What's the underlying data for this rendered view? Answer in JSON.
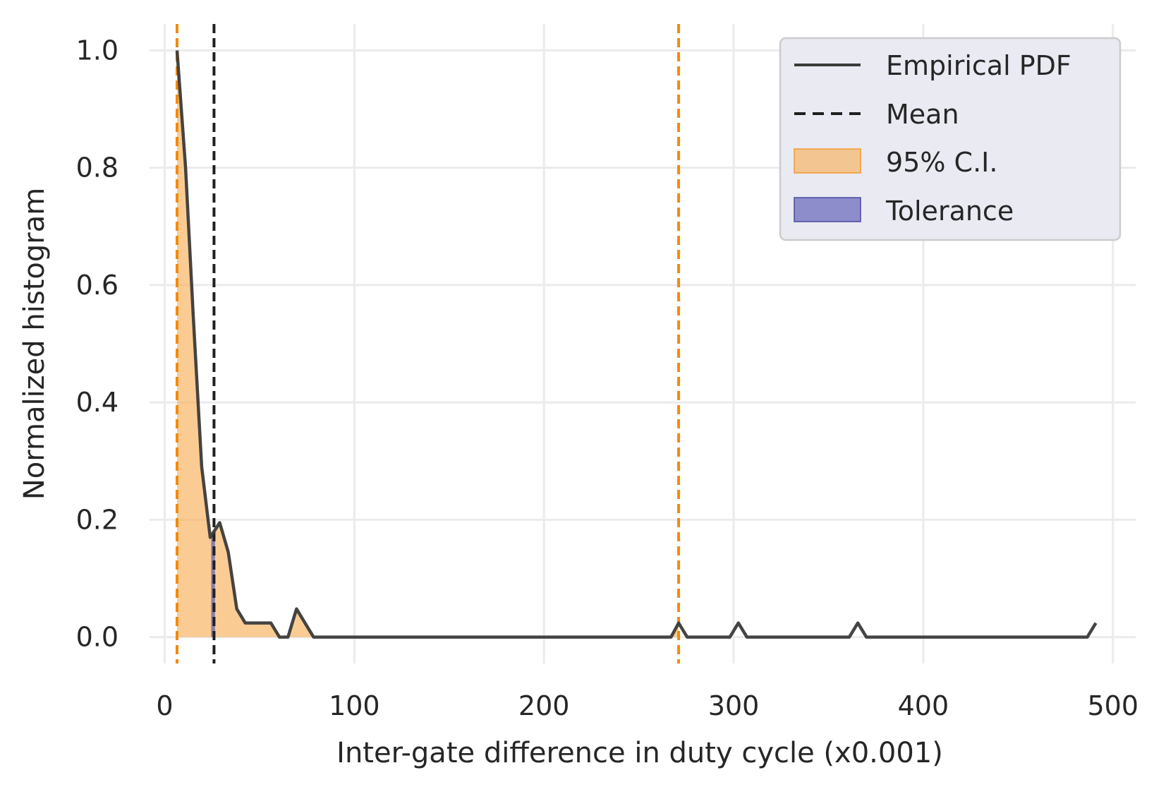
{
  "chart_data": {
    "type": "line",
    "xlabel": "Inter-gate difference in duty cycle  (x0.001)",
    "ylabel": "Normalized histogram",
    "xlim": [
      -8,
      512
    ],
    "ylim": [
      -0.045,
      1.045
    ],
    "x_ticks": [
      0,
      100,
      200,
      300,
      400,
      500
    ],
    "x_tick_labels": [
      "0",
      "100",
      "200",
      "300",
      "400",
      "500"
    ],
    "y_ticks": [
      0.0,
      0.2,
      0.4,
      0.6,
      0.8,
      1.0
    ],
    "y_tick_labels": [
      "0.0",
      "0.2",
      "0.4",
      "0.6",
      "0.8",
      "1.0"
    ],
    "grid": true,
    "legend_position": "top-right",
    "series": [
      {
        "name": "Empirical PDF",
        "x": [
          6.5,
          11,
          15,
          19.5,
          24,
          26,
          29,
          33.5,
          38,
          42.5,
          47,
          51.5,
          56,
          60.5,
          65,
          69.5,
          74,
          78.5,
          83,
          87.5,
          100,
          150,
          200,
          250,
          262.5,
          267,
          271,
          275.5,
          280,
          284.5,
          289,
          293.5,
          298,
          302.5,
          307,
          311.5,
          320,
          340,
          360,
          361,
          365.5,
          370,
          380,
          400,
          430,
          460,
          480,
          486.5,
          491
        ],
        "y": [
          1.0,
          0.8,
          0.55,
          0.29,
          0.17,
          0.18,
          0.195,
          0.145,
          0.048,
          0.024,
          0.024,
          0.024,
          0.024,
          0.0,
          0.0,
          0.048,
          0.024,
          0.0,
          0.0,
          0.0,
          0.0,
          0.0,
          0.0,
          0.0,
          0.0,
          0.0,
          0.024,
          0.0,
          0.0,
          0.0,
          0.0,
          0.0,
          0.0,
          0.024,
          0.0,
          0.0,
          0.0,
          0.0,
          0.0,
          0.0,
          0.024,
          0.0,
          0.0,
          0.0,
          0.0,
          0.0,
          0.0,
          0.0,
          0.024
        ],
        "color": "#3a3a3a"
      }
    ],
    "mean": {
      "name": "Mean",
      "x": 26,
      "color": "#1f1f1f"
    },
    "ci": {
      "name": "95% C.I.",
      "lower": 6.5,
      "upper": 271,
      "line_color": "#f28a10",
      "fill_color": "#f7b05a"
    },
    "tolerance": {
      "name": "Tolerance",
      "lower": 24.5,
      "upper": 26.5,
      "fill_color": "#5b5bb5"
    },
    "legend": [
      "Empirical PDF",
      "Mean",
      "95% C.I.",
      "Tolerance"
    ]
  }
}
